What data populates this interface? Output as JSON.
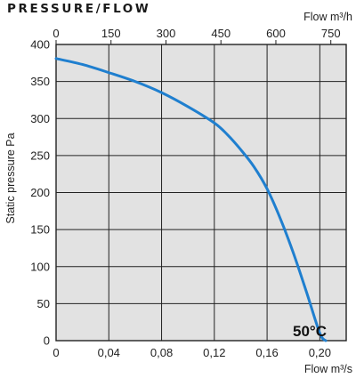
{
  "chart_data": {
    "type": "line",
    "title": "PRESSURE/FLOW",
    "ylabel": "Static pressure Pa",
    "xlabel_bottom": "Flow m³/s",
    "xlabel_top": "Flow m³/h",
    "ylim": [
      0,
      400
    ],
    "xlim_bottom": [
      0,
      0.22
    ],
    "xlim_top": [
      0,
      792
    ],
    "y_ticks": [
      "0",
      "50",
      "100",
      "150",
      "200",
      "250",
      "300",
      "350",
      "400"
    ],
    "y_tick_values": [
      0,
      50,
      100,
      150,
      200,
      250,
      300,
      350,
      400
    ],
    "x_bottom_ticks": [
      "0",
      "0,04",
      "0,08",
      "0,12",
      "0,16",
      "0,20"
    ],
    "x_bottom_tick_values": [
      0,
      0.04,
      0.08,
      0.12,
      0.16,
      0.2
    ],
    "x_top_ticks": [
      "0",
      "150",
      "300",
      "450",
      "600",
      "750"
    ],
    "x_top_tick_values": [
      0,
      150,
      300,
      450,
      600,
      750
    ],
    "grid": true,
    "background": "#e2e2e2",
    "line_color": "#1f7fcf",
    "annotation": "50°C",
    "series": [
      {
        "name": "",
        "x": [
          0,
          0.02,
          0.04,
          0.06,
          0.08,
          0.1,
          0.12,
          0.13,
          0.14,
          0.15,
          0.16,
          0.17,
          0.18,
          0.19,
          0.2,
          0.2045
        ],
        "y": [
          381,
          373,
          362,
          350,
          335,
          316,
          294,
          278,
          258,
          235,
          205,
          165,
          118,
          65,
          10,
          0
        ]
      }
    ]
  }
}
